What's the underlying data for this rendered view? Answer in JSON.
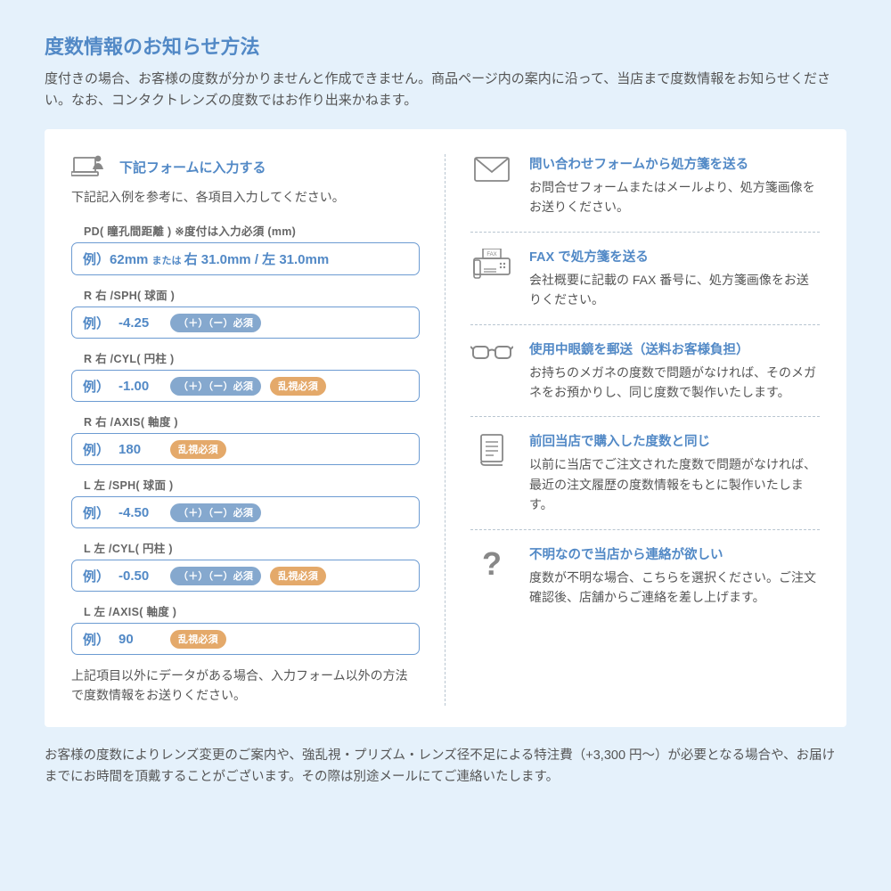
{
  "heading": "度数情報のお知らせ方法",
  "intro": "度付きの場合、お客様の度数が分かりませんと作成できません。商品ページ内の案内に沿って、当店まで度数情報をお知らせください。なお、コンタクトレンズの度数ではお作り出来かねます。",
  "form": {
    "title": "下記フォームに入力する",
    "subtitle": "下記記入例を参考に、各項目入力してください。",
    "footnote": "上記項目以外にデータがある場合、入力フォーム以外の方法で度数情報をお送りください。"
  },
  "fields": [
    {
      "label": "PD( 瞳孔間距離 ) ※度付は入力必須 (mm)",
      "kind": "pd",
      "ex": "例）",
      "pd_main": "62mm ",
      "pd_or": "または ",
      "pd_alt": "右 31.0mm / 左 31.0mm"
    },
    {
      "label": "R 右 /SPH( 球面 )",
      "ex": "例）",
      "value": "-4.25",
      "pills": [
        "blue"
      ]
    },
    {
      "label": "R 右 /CYL( 円柱 )",
      "ex": "例）",
      "value": "-1.00",
      "pills": [
        "blue",
        "orange"
      ]
    },
    {
      "label": "R 右 /AXIS( 軸度 )",
      "ex": "例）",
      "value": "180",
      "pills": [
        "orange"
      ]
    },
    {
      "label": "L 左 /SPH( 球面 )",
      "ex": "例）",
      "value": "-4.50",
      "pills": [
        "blue"
      ]
    },
    {
      "label": "L 左 /CYL( 円柱 )",
      "ex": "例）",
      "value": "-0.50",
      "pills": [
        "blue",
        "orange"
      ]
    },
    {
      "label": "L 左 /AXIS( 軸度 )",
      "ex": "例）",
      "value": "90",
      "pills": [
        "orange"
      ]
    }
  ],
  "pill_labels": {
    "blue": "（＋）（ー）必須",
    "orange": "乱視必須"
  },
  "methods": [
    {
      "icon": "mail",
      "title": "問い合わせフォームから処方箋を送る",
      "desc": "お問合せフォームまたはメールより、処方箋画像をお送りください。"
    },
    {
      "icon": "fax",
      "title": "FAX で処方箋を送る",
      "desc": "会社概要に記載の FAX 番号に、処方箋画像をお送りください。"
    },
    {
      "icon": "glasses",
      "title": "使用中眼鏡を郵送（送料お客様負担）",
      "desc": "お持ちのメガネの度数で問題がなければ、そのメガネをお預かりし、同じ度数で製作いたします。"
    },
    {
      "icon": "doc",
      "title": "前回当店で購入した度数と同じ",
      "desc": "以前に当店でご注文された度数で問題がなければ、最近の注文履歴の度数情報をもとに製作いたします。"
    },
    {
      "icon": "question",
      "title": "不明なので当店から連絡が欲しい",
      "desc": "度数が不明な場合、こちらを選択ください。ご注文確認後、店舗からご連絡を差し上げます。"
    }
  ],
  "footer": "お客様の度数によりレンズ変更のご案内や、強乱視・プリズム・レンズ径不足による特注費（+3,300 円〜）が必要となる場合や、お届けまでにお時間を頂戴することがございます。その際は別途メールにてご連絡いたします。",
  "colors": {
    "accent": "#5289c6",
    "border": "#6c9bd2",
    "pill_blue": "#85a8ce",
    "pill_orange": "#e4a96a",
    "text": "#555555",
    "icon": "#888888",
    "bg": "#e5f1fb",
    "card": "#ffffff"
  }
}
